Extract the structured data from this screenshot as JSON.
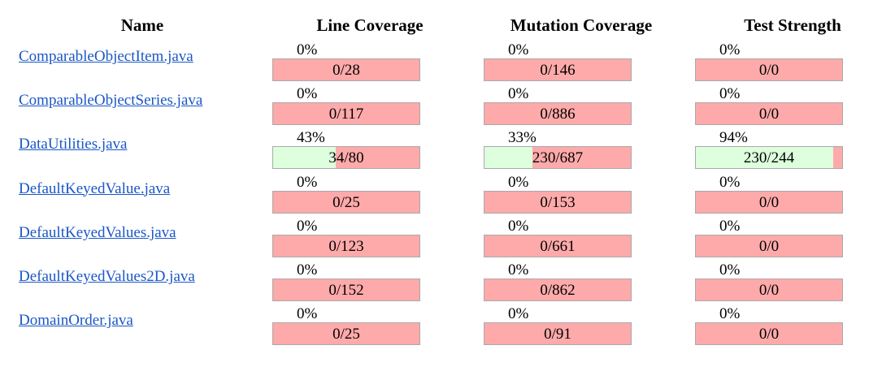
{
  "headers": {
    "name": "Name",
    "line": "Line Coverage",
    "mutation": "Mutation Coverage",
    "strength": "Test Strength"
  },
  "rows": [
    {
      "file": "ComparableObjectItem.java",
      "line": {
        "pct": "0%",
        "frac": "0/28",
        "ratio": 0
      },
      "mutation": {
        "pct": "0%",
        "frac": "0/146",
        "ratio": 0
      },
      "strength": {
        "pct": "0%",
        "frac": "0/0",
        "ratio": 0
      }
    },
    {
      "file": "ComparableObjectSeries.java",
      "line": {
        "pct": "0%",
        "frac": "0/117",
        "ratio": 0
      },
      "mutation": {
        "pct": "0%",
        "frac": "0/886",
        "ratio": 0
      },
      "strength": {
        "pct": "0%",
        "frac": "0/0",
        "ratio": 0
      }
    },
    {
      "file": "DataUtilities.java",
      "line": {
        "pct": "43%",
        "frac": "34/80",
        "ratio": 0.43
      },
      "mutation": {
        "pct": "33%",
        "frac": "230/687",
        "ratio": 0.33
      },
      "strength": {
        "pct": "94%",
        "frac": "230/244",
        "ratio": 0.94
      }
    },
    {
      "file": "DefaultKeyedValue.java",
      "line": {
        "pct": "0%",
        "frac": "0/25",
        "ratio": 0
      },
      "mutation": {
        "pct": "0%",
        "frac": "0/153",
        "ratio": 0
      },
      "strength": {
        "pct": "0%",
        "frac": "0/0",
        "ratio": 0
      }
    },
    {
      "file": "DefaultKeyedValues.java",
      "line": {
        "pct": "0%",
        "frac": "0/123",
        "ratio": 0
      },
      "mutation": {
        "pct": "0%",
        "frac": "0/661",
        "ratio": 0
      },
      "strength": {
        "pct": "0%",
        "frac": "0/0",
        "ratio": 0
      }
    },
    {
      "file": "DefaultKeyedValues2D.java",
      "line": {
        "pct": "0%",
        "frac": "0/152",
        "ratio": 0
      },
      "mutation": {
        "pct": "0%",
        "frac": "0/862",
        "ratio": 0
      },
      "strength": {
        "pct": "0%",
        "frac": "0/0",
        "ratio": 0
      }
    },
    {
      "file": "DomainOrder.java",
      "line": {
        "pct": "0%",
        "frac": "0/25",
        "ratio": 0
      },
      "mutation": {
        "pct": "0%",
        "frac": "0/91",
        "ratio": 0
      },
      "strength": {
        "pct": "0%",
        "frac": "0/0",
        "ratio": 0
      }
    }
  ],
  "colors": {
    "covered": "#ddffdd",
    "uncovered": "#ffaaaa",
    "link": "#1a57c6"
  }
}
